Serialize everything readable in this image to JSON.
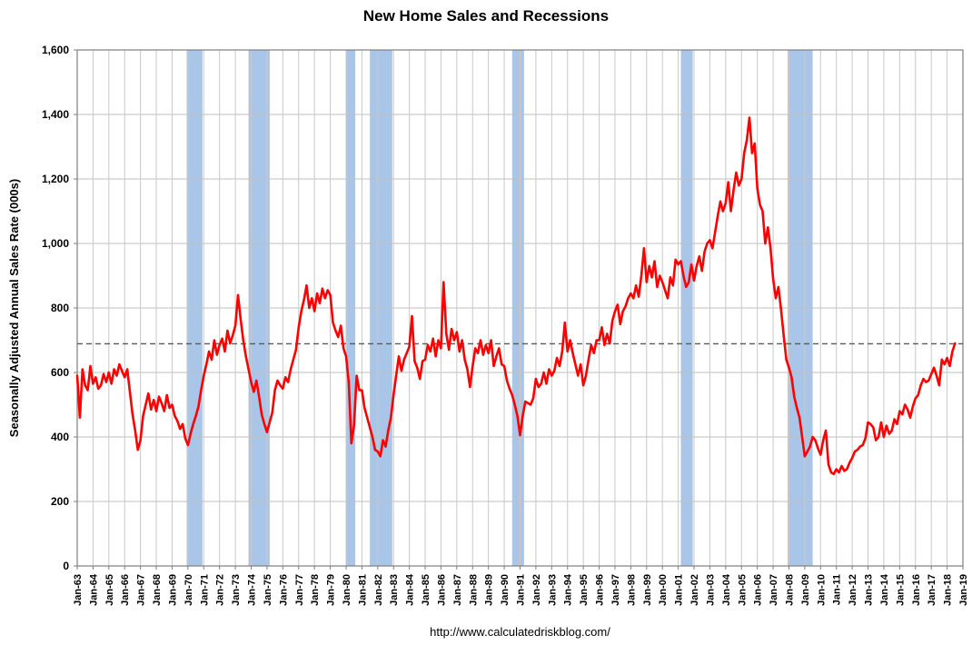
{
  "page": {
    "title": "New Home Sales and Recessions",
    "footer_url": "http://www.calculatedriskblog.com/"
  },
  "chart_data": {
    "type": "line",
    "title": "New Home Sales and Recessions",
    "xlabel": "",
    "ylabel": "Seasonally Adjusted Annual Sales Rate (000s)",
    "ylim": [
      0,
      1600
    ],
    "ytick_step": 200,
    "y_tick_labels": [
      "0",
      "200",
      "400",
      "600",
      "800",
      "1,000",
      "1,200",
      "1,400",
      "1,600"
    ],
    "x_range_years": [
      1963,
      2019
    ],
    "x_tick_labels": [
      "Jan-63",
      "Jan-64",
      "Jan-65",
      "Jan-66",
      "Jan-67",
      "Jan-68",
      "Jan-69",
      "Jan-70",
      "Jan-71",
      "Jan-72",
      "Jan-73",
      "Jan-74",
      "Jan-75",
      "Jan-76",
      "Jan-77",
      "Jan-78",
      "Jan-79",
      "Jan-80",
      "Jan-81",
      "Jan-82",
      "Jan-83",
      "Jan-84",
      "Jan-85",
      "Jan-86",
      "Jan-87",
      "Jan-88",
      "Jan-89",
      "Jan-90",
      "Jan-91",
      "Jan-92",
      "Jan-93",
      "Jan-94",
      "Jan-95",
      "Jan-96",
      "Jan-97",
      "Jan-98",
      "Jan-99",
      "Jan-00",
      "Jan-01",
      "Jan-02",
      "Jan-03",
      "Jan-04",
      "Jan-05",
      "Jan-06",
      "Jan-07",
      "Jan-08",
      "Jan-09",
      "Jan-10",
      "Jan-11",
      "Jan-12",
      "Jan-13",
      "Jan-14",
      "Jan-15",
      "Jan-16",
      "Jan-17",
      "Jan-18",
      "Jan-19"
    ],
    "grid": true,
    "legend": "none",
    "reference_line": {
      "value": 689,
      "color": "#595959",
      "style": "dashed"
    },
    "recession_bands": {
      "color": "#A9C6E8",
      "ranges": [
        [
          1969.92,
          1970.92
        ],
        [
          1973.83,
          1975.17
        ],
        [
          1980.0,
          1980.58
        ],
        [
          1981.5,
          1982.92
        ],
        [
          1990.5,
          1991.25
        ],
        [
          2001.17,
          2001.92
        ],
        [
          2007.92,
          2009.5
        ]
      ]
    },
    "series": [
      {
        "name": "New Home Sales (SAAR, thousands)",
        "color": "#FF0000",
        "start_year": 1963.0,
        "interval_years": 0.1666667,
        "values": [
          590,
          460,
          610,
          560,
          545,
          620,
          565,
          585,
          550,
          560,
          595,
          570,
          600,
          565,
          610,
          590,
          625,
          605,
          585,
          610,
          540,
          470,
          420,
          360,
          390,
          465,
          500,
          535,
          485,
          515,
          480,
          525,
          505,
          480,
          530,
          490,
          500,
          465,
          450,
          425,
          440,
          395,
          375,
          410,
          440,
          465,
          495,
          545,
          590,
          625,
          665,
          640,
          700,
          655,
          685,
          705,
          665,
          730,
          690,
          715,
          745,
          840,
          765,
          700,
          650,
          610,
          570,
          540,
          575,
          525,
          470,
          440,
          415,
          445,
          475,
          545,
          575,
          560,
          550,
          585,
          570,
          610,
          640,
          670,
          740,
          790,
          825,
          870,
          800,
          830,
          790,
          845,
          815,
          860,
          830,
          855,
          840,
          755,
          730,
          710,
          745,
          675,
          650,
          570,
          380,
          435,
          590,
          545,
          545,
          490,
          460,
          430,
          400,
          360,
          355,
          340,
          390,
          370,
          420,
          460,
          530,
          590,
          650,
          605,
          640,
          660,
          680,
          775,
          635,
          615,
          580,
          635,
          640,
          685,
          665,
          705,
          650,
          700,
          675,
          880,
          720,
          670,
          735,
          700,
          725,
          665,
          700,
          640,
          610,
          555,
          620,
          675,
          660,
          700,
          655,
          685,
          660,
          700,
          620,
          650,
          675,
          625,
          620,
          575,
          550,
          530,
          500,
          465,
          405,
          465,
          510,
          505,
          500,
          520,
          580,
          555,
          565,
          600,
          565,
          610,
          590,
          605,
          645,
          620,
          665,
          755,
          665,
          700,
          660,
          625,
          590,
          625,
          560,
          590,
          640,
          685,
          660,
          700,
          700,
          740,
          685,
          720,
          690,
          760,
          790,
          810,
          750,
          790,
          805,
          830,
          845,
          830,
          870,
          835,
          900,
          985,
          880,
          930,
          895,
          945,
          865,
          900,
          880,
          855,
          830,
          895,
          870,
          950,
          935,
          945,
          900,
          865,
          880,
          935,
          885,
          930,
          960,
          915,
          975,
          1000,
          1010,
          985,
          1035,
          1085,
          1130,
          1100,
          1125,
          1190,
          1100,
          1165,
          1220,
          1180,
          1200,
          1280,
          1320,
          1390,
          1280,
          1310,
          1170,
          1120,
          1100,
          1000,
          1050,
          985,
          890,
          830,
          865,
          795,
          715,
          640,
          615,
          585,
          525,
          490,
          460,
          400,
          340,
          355,
          370,
          400,
          390,
          365,
          345,
          390,
          420,
          315,
          290,
          285,
          300,
          290,
          310,
          295,
          300,
          320,
          335,
          355,
          360,
          370,
          375,
          395,
          445,
          440,
          430,
          390,
          400,
          445,
          400,
          435,
          410,
          420,
          455,
          440,
          480,
          470,
          500,
          485,
          460,
          495,
          520,
          530,
          560,
          580,
          570,
          575,
          595,
          615,
          590,
          560,
          640,
          625,
          645,
          620,
          665,
          690
        ]
      }
    ]
  }
}
